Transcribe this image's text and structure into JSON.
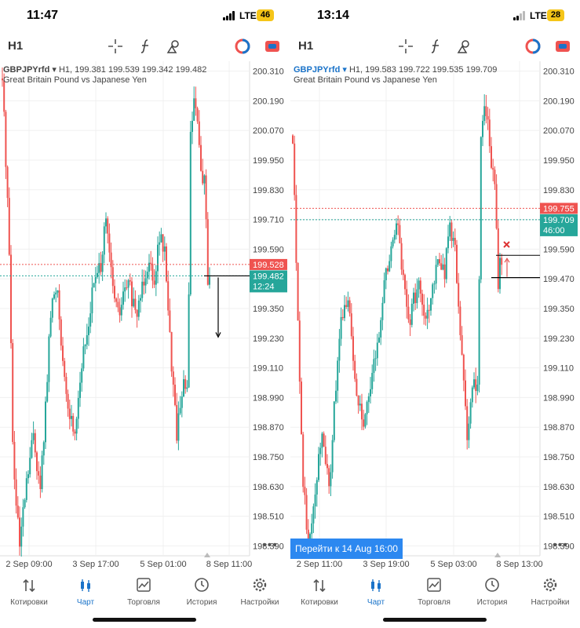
{
  "colors": {
    "up": "#26a69a",
    "down": "#ef5350",
    "accent": "#1a73c9",
    "bid": "#26a69a",
    "ask": "#ef5350"
  },
  "screens": [
    {
      "status": {
        "time": "11:47",
        "network": "LTE",
        "battery": "46"
      },
      "toolbar": {
        "timeframe": "H1",
        "icons": [
          "crosshair-icon",
          "function-icon",
          "objects-icon",
          "trade-circle-icon",
          "chat-icon"
        ]
      },
      "chart": {
        "symbol": "GBPJPYrfd",
        "info": "H1, 199.381 199.539 199.342 199.482",
        "description": "Great Britain Pound vs Japanese Yen",
        "price_ticks": [
          "200.310",
          "200.190",
          "200.070",
          "199.950",
          "199.830",
          "199.710",
          "199.590",
          "199.470",
          "199.350",
          "199.230",
          "199.110",
          "198.990",
          "198.870",
          "198.750",
          "198.630",
          "198.510",
          "198.390"
        ],
        "time_ticks": [
          "2 Sep 09:00",
          "3 Sep 17:00",
          "5 Sep 01:00",
          "8 Sep 11:00"
        ],
        "ask_label": "199.528",
        "bid_label": "199.482",
        "countdown": "12:24",
        "goto_label": "",
        "more_label": "•••"
      },
      "chart_data": {
        "type": "candlestick",
        "y_range": [
          198.35,
          200.35
        ],
        "ask_price": 199.528,
        "bid_price": 199.482
      }
    },
    {
      "status": {
        "time": "13:14",
        "network": "LTE",
        "battery": "28"
      },
      "toolbar": {
        "timeframe": "H1",
        "icons": [
          "crosshair-icon",
          "function-icon",
          "objects-icon",
          "trade-circle-icon",
          "chat-icon"
        ]
      },
      "chart": {
        "symbol": "GBPJPYrfd",
        "info": "H1, 199.583 199.722 199.535 199.709",
        "description": "Great Britain Pound vs Japanese Yen",
        "price_ticks": [
          "200.310",
          "200.190",
          "200.070",
          "199.950",
          "199.830",
          "199.710",
          "199.590",
          "199.470",
          "199.350",
          "199.230",
          "199.110",
          "198.990",
          "198.870",
          "198.750",
          "198.630",
          "198.510",
          "198.390"
        ],
        "time_ticks": [
          "2 Sep 11:00",
          "3 Sep 19:00",
          "5 Sep 03:00",
          "8 Sep 13:00"
        ],
        "ask_label": "199.755",
        "bid_label": "199.709",
        "countdown": "46:00",
        "goto_label": "Перейти к 14 Aug 16:00",
        "more_label": "•••"
      },
      "chart_data": {
        "type": "candlestick",
        "y_range": [
          198.35,
          200.35
        ],
        "ask_price": 199.755,
        "bid_price": 199.709
      }
    }
  ],
  "tabs": [
    {
      "label": "Котировки",
      "icon": "quotes-icon"
    },
    {
      "label": "Чарт",
      "icon": "chart-icon",
      "active": true
    },
    {
      "label": "Торговля",
      "icon": "trade-icon"
    },
    {
      "label": "История",
      "icon": "history-icon"
    },
    {
      "label": "Настройки",
      "icon": "settings-icon"
    }
  ]
}
